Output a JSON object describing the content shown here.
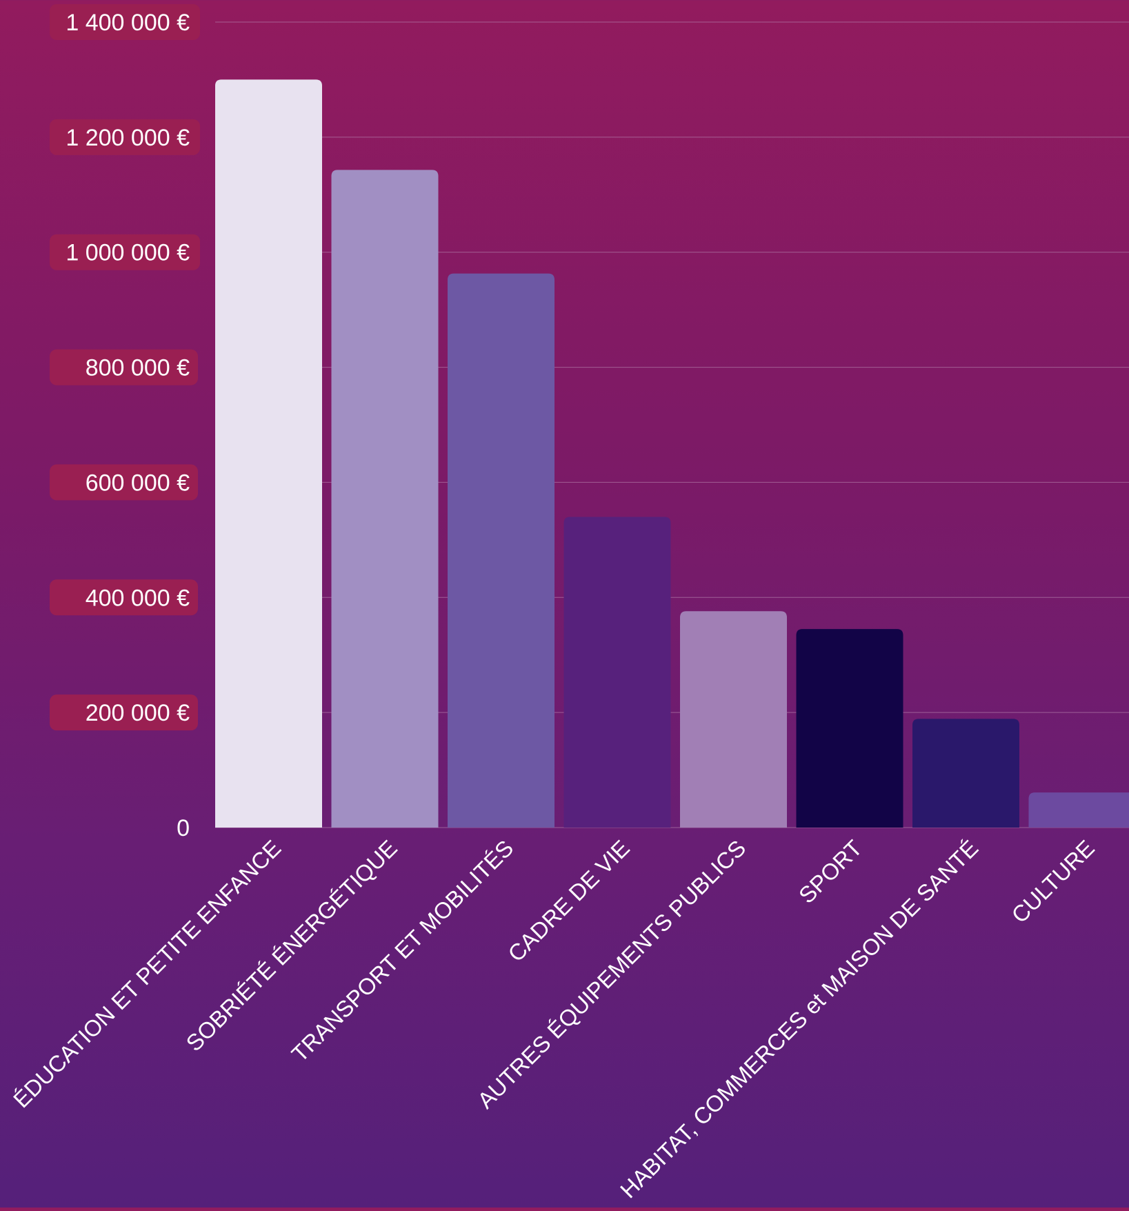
{
  "chart_data": {
    "type": "bar",
    "title": "",
    "xlabel": "",
    "ylabel": "",
    "categories": [
      "ÉDUCATION ET PETITE ENFANCE",
      "SOBRIÉTÉ ÉNERGÉTIQUE",
      "TRANSPORT ET MOBILITÉS",
      "CADRE DE VIE",
      "AUTRES ÉQUIPEMENTS PUBLICS",
      "SPORT",
      "HABITAT, COMMERCES et MAISON DE SANTÉ",
      "CULTURE"
    ],
    "values": [
      1300000,
      1143000,
      963000,
      540000,
      376000,
      345000,
      189000,
      61000
    ],
    "bar_colors": [
      "#e8e2f0",
      "#a18fc3",
      "#6d58a4",
      "#57217c",
      "#a17fb5",
      "#120447",
      "#2a186b",
      "#6c4aa0"
    ],
    "ylim": [
      0,
      1400000
    ],
    "y_ticks": [
      0,
      200000,
      400000,
      600000,
      800000,
      1000000,
      1200000,
      1400000
    ],
    "y_tick_labels": [
      "0",
      "200 000 €",
      "400 000 €",
      "600 000 €",
      "800 000 €",
      "1 000 000 €",
      "1 200 000 €",
      "1 400 000 €"
    ],
    "grid": true,
    "legend": "none",
    "colors": {
      "tick_label_badge": "#9a1f52",
      "tick_label_text": "#ffffff",
      "gridline": "#b07aa8"
    }
  }
}
